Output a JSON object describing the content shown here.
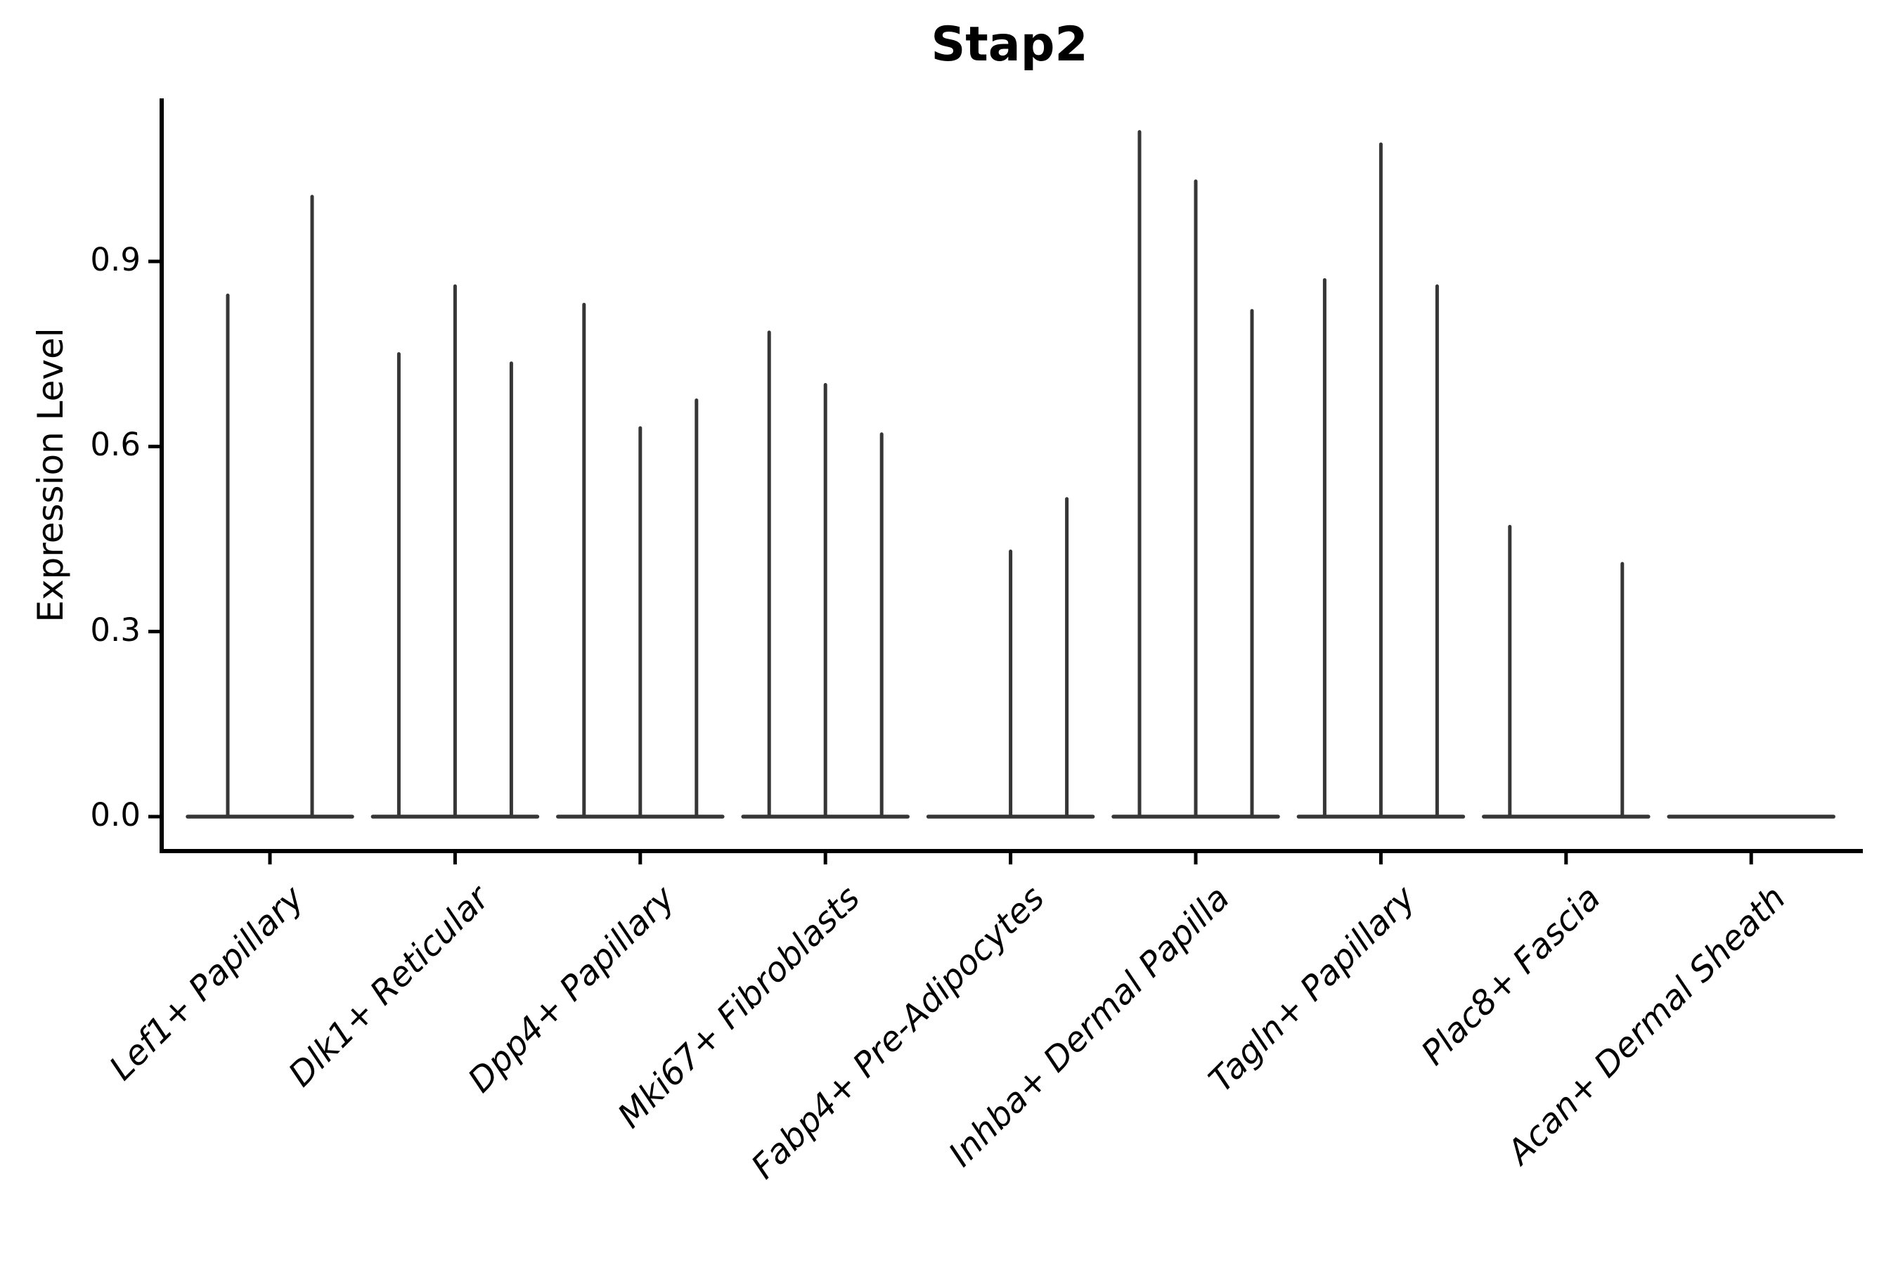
{
  "title": "Stap2",
  "axes": {
    "ylabel": "Expression Level",
    "xlabel": ""
  },
  "chart_data": {
    "type": "violin",
    "title": "Stap2",
    "xlabel": "",
    "ylabel": "Expression Level",
    "ylim": [
      -0.056,
      1.164
    ],
    "grid": false,
    "legend": "none",
    "style_note": "needle-style violins: nearly all density at 0 giving a flat base pancake, with a thin vertical spike up to the max expression value; 2-3 dodged violins per category",
    "yticks": [
      {
        "label": "0.0",
        "value": 0.0
      },
      {
        "label": "0.3",
        "value": 0.3
      },
      {
        "label": "0.6",
        "value": 0.6
      },
      {
        "label": "0.9",
        "value": 0.9
      }
    ],
    "categories": [
      "Lef1+ Papillary",
      "Dlk1+ Reticular",
      "Dpp4+ Papillary",
      "Mki67+ Fibroblasts",
      "Fabp4+ Pre-Adipocytes",
      "Inhba+ Dermal Papilla",
      "Tagln+ Papillary",
      "Plac8+ Fascia",
      "Acan+ Dermal Sheath"
    ],
    "groups": [
      {
        "label": "Lef1+ Papillary",
        "spike_max": [
          0.845,
          1.005
        ]
      },
      {
        "label": "Dlk1+ Reticular",
        "spike_max": [
          0.75,
          0.86,
          0.735
        ]
      },
      {
        "label": "Dpp4+ Papillary",
        "spike_max": [
          0.83,
          0.63,
          0.675
        ]
      },
      {
        "label": "Mki67+ Fibroblasts",
        "spike_max": [
          0.785,
          0.7,
          0.62
        ]
      },
      {
        "label": "Fabp4+ Pre-Adipocytes",
        "spike_max": [
          0,
          0.43,
          0.515
        ]
      },
      {
        "label": "Inhba+ Dermal Papilla",
        "spike_max": [
          1.11,
          1.03,
          0.82
        ]
      },
      {
        "label": "Tagln+ Papillary",
        "spike_max": [
          0.87,
          1.09,
          0.86
        ]
      },
      {
        "label": "Plac8+ Fascia",
        "spike_max": [
          0.47,
          0,
          0.41
        ]
      },
      {
        "label": "Acan+ Dermal Sheath",
        "spike_max": [
          0,
          0,
          0
        ]
      }
    ],
    "colors": {
      "violin_stroke": "#363636",
      "axis": "#000000",
      "text": "#000000",
      "background": "#ffffff"
    }
  }
}
